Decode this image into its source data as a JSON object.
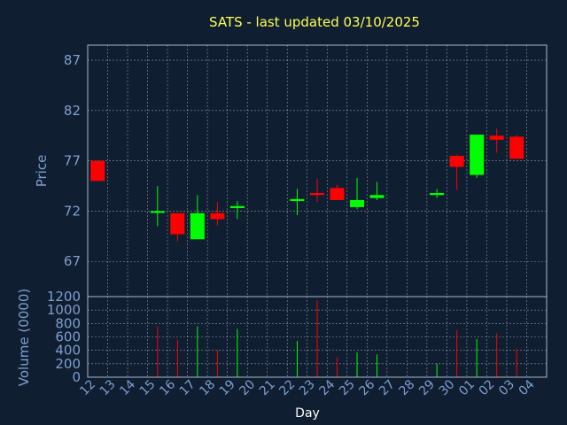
{
  "colors": {
    "background": "#0f1e30",
    "up": "#00ff00",
    "down": "#ff0000",
    "title": "#ffff55",
    "axis_text": "#7f9fcf"
  },
  "chart_data": [
    {
      "type": "candlestick",
      "title": "SATS - last updated 03/10/2025",
      "ylabel": "Price",
      "ylim": [
        63.5,
        88.5
      ],
      "yticks": [
        67,
        72,
        77,
        82,
        87
      ],
      "grid": true,
      "categories": [
        "12",
        "13",
        "14",
        "15",
        "16",
        "17",
        "18",
        "19",
        "20",
        "21",
        "22",
        "23",
        "24",
        "25",
        "26",
        "27",
        "28",
        "29",
        "30",
        "01",
        "02",
        "03",
        "04"
      ],
      "candles": [
        {
          "day": "12",
          "open": 77.0,
          "close": 75.0,
          "high": 77.0,
          "low": 75.0
        },
        {
          "day": "15",
          "open": 72.0,
          "close": 72.0,
          "high": 74.5,
          "low": 70.5
        },
        {
          "day": "16",
          "open": 71.8,
          "close": 69.7,
          "high": 71.8,
          "low": 69.0
        },
        {
          "day": "17",
          "open": 69.2,
          "close": 71.8,
          "high": 73.6,
          "low": 69.2
        },
        {
          "day": "18",
          "open": 71.8,
          "close": 71.2,
          "high": 72.9,
          "low": 70.6
        },
        {
          "day": "19",
          "open": 72.3,
          "close": 72.5,
          "high": 73.0,
          "low": 71.2
        },
        {
          "day": "22",
          "open": 73.0,
          "close": 73.2,
          "high": 74.2,
          "low": 71.6
        },
        {
          "day": "23",
          "open": 73.8,
          "close": 73.6,
          "high": 75.2,
          "low": 72.9
        },
        {
          "day": "24",
          "open": 74.3,
          "close": 73.1,
          "high": 74.6,
          "low": 73.1
        },
        {
          "day": "25",
          "open": 72.4,
          "close": 73.1,
          "high": 75.3,
          "low": 72.2
        },
        {
          "day": "26",
          "open": 73.3,
          "close": 73.6,
          "high": 74.9,
          "low": 73.1
        },
        {
          "day": "29",
          "open": 73.6,
          "close": 73.8,
          "high": 74.2,
          "low": 73.3
        },
        {
          "day": "30",
          "open": 77.5,
          "close": 76.4,
          "high": 77.6,
          "low": 74.1
        },
        {
          "day": "01",
          "open": 75.6,
          "close": 79.6,
          "high": 79.6,
          "low": 75.3
        },
        {
          "day": "02",
          "open": 79.5,
          "close": 79.1,
          "high": 80.2,
          "low": 77.8
        },
        {
          "day": "03",
          "open": 79.4,
          "close": 77.2,
          "high": 79.6,
          "low": 77.2
        }
      ]
    },
    {
      "type": "bar",
      "ylabel": "Volume (0000)",
      "xlabel": "Day",
      "ylim": [
        0,
        1200
      ],
      "yticks": [
        0,
        200,
        400,
        600,
        800,
        1000,
        1200
      ],
      "grid": true,
      "categories": [
        "12",
        "13",
        "14",
        "15",
        "16",
        "17",
        "18",
        "19",
        "20",
        "21",
        "22",
        "23",
        "24",
        "25",
        "26",
        "27",
        "28",
        "29",
        "30",
        "01",
        "02",
        "03",
        "04"
      ],
      "volume": [
        {
          "day": "15",
          "value": 760,
          "direction": "down"
        },
        {
          "day": "16",
          "value": 560,
          "direction": "down"
        },
        {
          "day": "17",
          "value": 760,
          "direction": "up"
        },
        {
          "day": "18",
          "value": 400,
          "direction": "down"
        },
        {
          "day": "19",
          "value": 720,
          "direction": "up"
        },
        {
          "day": "22",
          "value": 540,
          "direction": "up"
        },
        {
          "day": "23",
          "value": 1140,
          "direction": "down"
        },
        {
          "day": "24",
          "value": 300,
          "direction": "down"
        },
        {
          "day": "25",
          "value": 370,
          "direction": "up"
        },
        {
          "day": "26",
          "value": 340,
          "direction": "up"
        },
        {
          "day": "29",
          "value": 200,
          "direction": "up"
        },
        {
          "day": "30",
          "value": 700,
          "direction": "down"
        },
        {
          "day": "01",
          "value": 570,
          "direction": "up"
        },
        {
          "day": "02",
          "value": 650,
          "direction": "down"
        },
        {
          "day": "03",
          "value": 420,
          "direction": "down"
        }
      ]
    }
  ]
}
